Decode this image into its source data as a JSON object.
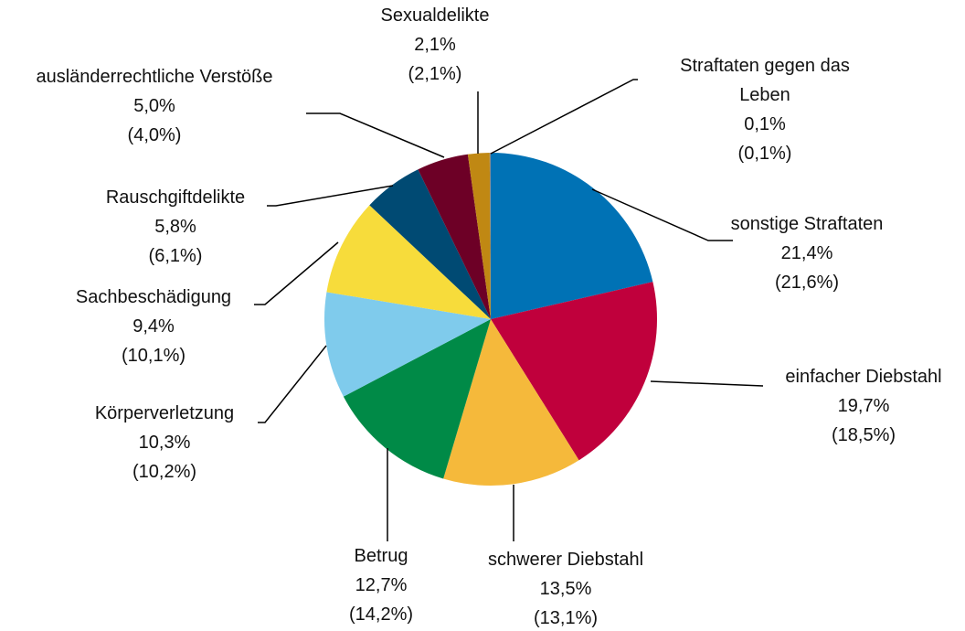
{
  "chart_data": {
    "type": "pie",
    "categories": [
      "sonstige Straftaten",
      "einfacher Diebstahl",
      "schwerer Diebstahl",
      "Betrug",
      "Körperverletzung",
      "Sachbeschädigung",
      "Rauschgiftdelikte",
      "ausländerrechtliche Verstöße",
      "Sexualdelikte",
      "Straftaten gegen das Leben"
    ],
    "values": [
      21.4,
      19.7,
      13.5,
      12.7,
      10.3,
      9.4,
      5.8,
      5.0,
      2.1,
      0.1
    ],
    "value_labels": [
      "21,4%",
      "19,7%",
      "13,5%",
      "12,7%",
      "10,3%",
      "9,4%",
      "5,8%",
      "5,0%",
      "2,1%",
      "0,1%"
    ],
    "prior_labels": [
      "(21,6%)",
      "(18,5%)",
      "(13,1%)",
      "(14,2%)",
      "(10,2%)",
      "(10,1%)",
      "(6,1%)",
      "(4,0%)",
      "(2,1%)",
      "(0,1%)"
    ],
    "colors": [
      "#0072b5",
      "#c0003c",
      "#f5b93b",
      "#008a47",
      "#7fcbec",
      "#f7dc3b",
      "#004a73",
      "#6d0026",
      "#c08813",
      "#8a8a8a"
    ]
  }
}
